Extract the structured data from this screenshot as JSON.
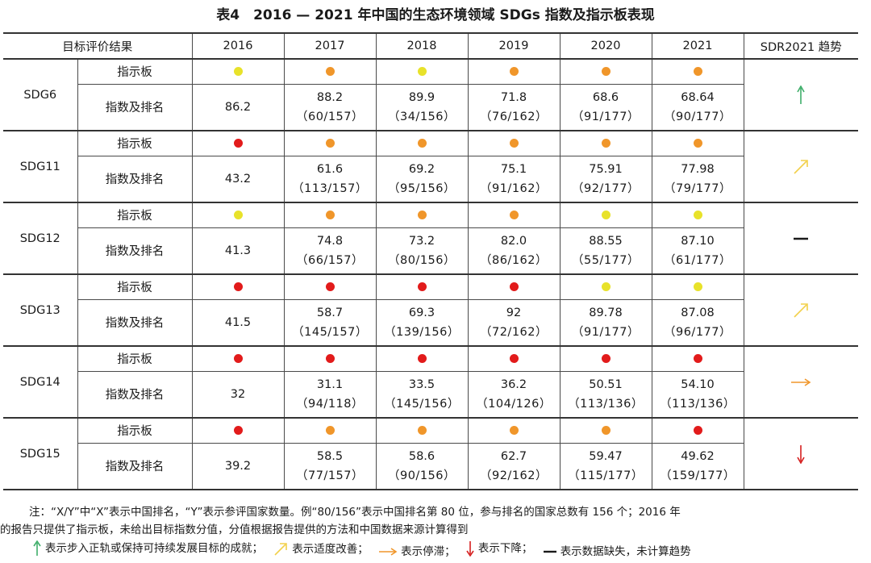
{
  "title": "表4　2016 — 2021 年中国的生态环境领域 SDGs 指数及指示板表现",
  "header": {
    "target_label": "目标评价结果",
    "years": [
      "2016",
      "2017",
      "2018",
      "2019",
      "2020",
      "2021"
    ],
    "trend_label": "SDR2021 趋势"
  },
  "row_labels": {
    "dashboard": "指示板",
    "index": "指数及排名"
  },
  "colors": {
    "green_yellow": "#e8e22a",
    "orange": "#f0962a",
    "red": "#e21b1b",
    "arrow_green": "#3fae6a",
    "arrow_yellow": "#f2d04a",
    "arrow_orange": "#f0962a",
    "arrow_red": "#d62020"
  },
  "rows": [
    {
      "sdg": "SDG6",
      "trend": "up",
      "dash": [
        "yellow",
        "orange",
        "yellow",
        "orange",
        "orange",
        "orange"
      ],
      "values": [
        "86.2",
        "88.2",
        "89.9",
        "71.8",
        "68.6",
        "68.64"
      ],
      "ranks": [
        "",
        "（60/157）",
        "（34/156）",
        "（76/162）",
        "（91/177）",
        "（90/177）"
      ]
    },
    {
      "sdg": "SDG11",
      "trend": "moderate",
      "dash": [
        "red",
        "orange",
        "orange",
        "orange",
        "orange",
        "orange"
      ],
      "values": [
        "43.2",
        "61.6",
        "69.2",
        "75.1",
        "75.91",
        "77.98"
      ],
      "ranks": [
        "",
        "（113/157）",
        "（95/156）",
        "（91/162）",
        "（92/177）",
        "（79/177）"
      ]
    },
    {
      "sdg": "SDG12",
      "trend": "missing",
      "dash": [
        "yellow",
        "orange",
        "orange",
        "orange",
        "yellow",
        "yellow"
      ],
      "values": [
        "41.3",
        "74.8",
        "73.2",
        "82.0",
        "88.55",
        "87.10"
      ],
      "ranks": [
        "",
        "（66/157）",
        "（80/156）",
        "（86/162）",
        "（55/177）",
        "（61/177）"
      ]
    },
    {
      "sdg": "SDG13",
      "trend": "moderate",
      "dash": [
        "red",
        "red",
        "red",
        "red",
        "yellow",
        "yellow"
      ],
      "values": [
        "41.5",
        "58.7",
        "69.3",
        "92",
        "89.78",
        "87.08"
      ],
      "ranks": [
        "",
        "（145/157）",
        "（139/156）",
        "（72/162）",
        "（91/177）",
        "（96/177）"
      ]
    },
    {
      "sdg": "SDG14",
      "trend": "stagnant",
      "dash": [
        "red",
        "red",
        "red",
        "red",
        "red",
        "red"
      ],
      "values": [
        "32",
        "31.1",
        "33.5",
        "36.2",
        "50.51",
        "54.10"
      ],
      "ranks": [
        "",
        "（94/118）",
        "（145/156）",
        "（104/126）",
        "（113/136）",
        "（113/136）"
      ]
    },
    {
      "sdg": "SDG15",
      "trend": "down",
      "dash": [
        "red",
        "orange",
        "orange",
        "orange",
        "orange",
        "red"
      ],
      "values": [
        "39.2",
        "58.5",
        "58.6",
        "62.7",
        "59.47",
        "49.62"
      ],
      "ranks": [
        "",
        "（77/157）",
        "（90/156）",
        "（92/162）",
        "（115/177）",
        "（159/177）"
      ]
    }
  ],
  "notes": {
    "line1": "注：“X/Y”中“X”表示中国排名，“Y”表示参评国家数量。例“80/156”表示中国排名第 80 位，参与排名的国家总数有 156 个；2016 年",
    "line2": "的报告只提供了指示板，未给出目标指数分值，分值根据报告提供的方法和中国数据来源计算得到"
  },
  "legend": {
    "up": "表示步入正轨或保持可持续发展目标的成就；",
    "moderate": "表示适度改善；",
    "stagnant": "表示停滞；",
    "down": "表示下降；",
    "missing": "表示数据缺失，未计算趋势"
  }
}
